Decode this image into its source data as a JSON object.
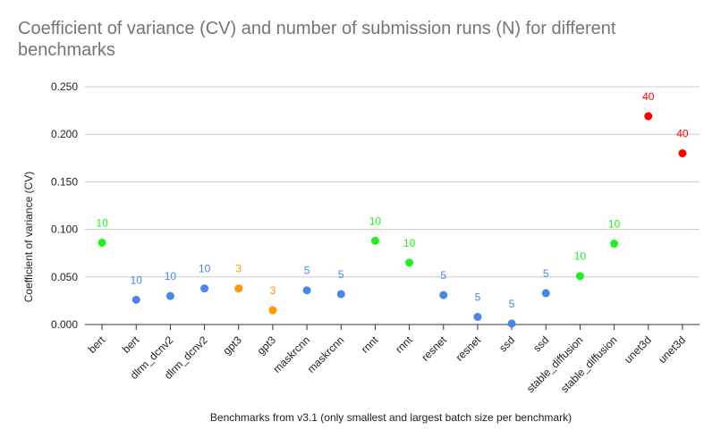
{
  "chart_data": {
    "type": "scatter",
    "title": "Coefficient of variance (CV) and number of submission runs (N) for different benchmarks",
    "xlabel": "Benchmarks from v3.1 (only smallest and largest batch size per benchmark)",
    "ylabel": "Coefficient of variance (CV)",
    "ylim": [
      0,
      0.25
    ],
    "yticks": [
      "0.000",
      "0.050",
      "0.100",
      "0.150",
      "0.200",
      "0.250"
    ],
    "grid": true,
    "categories": [
      "bert",
      "bert",
      "dlrm_dcnv2",
      "dlrm_dcnv2",
      "gpt3",
      "gpt3",
      "maskrcnn",
      "maskrcnn",
      "rnnt",
      "rnnt",
      "resnet",
      "resnet",
      "ssd",
      "ssd",
      "stable_diffusion",
      "stable_diffusion",
      "unet3d",
      "unet3d"
    ],
    "values": [
      0.086,
      0.026,
      0.03,
      0.038,
      0.038,
      0.015,
      0.036,
      0.032,
      0.088,
      0.065,
      0.031,
      0.008,
      0.001,
      0.033,
      0.051,
      0.085,
      0.219,
      0.18
    ],
    "labels": [
      "10",
      "10",
      "10",
      "10",
      "3",
      "3",
      "5",
      "5",
      "10",
      "10",
      "5",
      "5",
      "5",
      "5",
      "10",
      "10",
      "40",
      "40"
    ],
    "colors": [
      "#22ee22",
      "#4a86e8",
      "#4a86e8",
      "#4a86e8",
      "#ff9900",
      "#ff9900",
      "#4a86e8",
      "#4a86e8",
      "#22ee22",
      "#22ee22",
      "#4a86e8",
      "#4a86e8",
      "#4a86e8",
      "#4a86e8",
      "#22ee22",
      "#22ee22",
      "#ff0000",
      "#ff0000"
    ]
  }
}
